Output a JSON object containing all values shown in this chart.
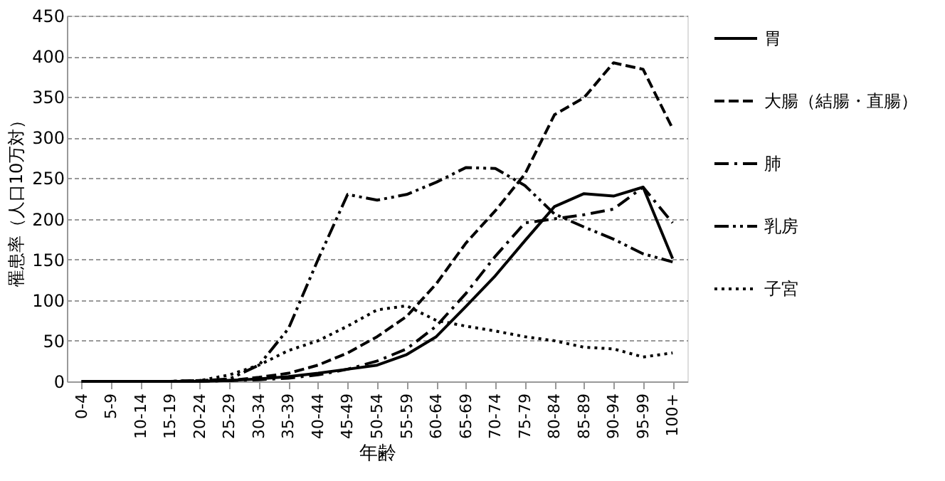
{
  "chart_data": {
    "type": "line",
    "xlabel": "年齢",
    "ylabel": "罹患率（人口10万対）",
    "categories": [
      "0-4",
      "5-9",
      "10-14",
      "15-19",
      "20-24",
      "25-29",
      "30-34",
      "35-39",
      "40-44",
      "45-49",
      "50-54",
      "55-59",
      "60-64",
      "65-69",
      "70-74",
      "75-79",
      "80-84",
      "85-89",
      "90-94",
      "95-99",
      "100+"
    ],
    "series": [
      {
        "name": "胃",
        "color": "#000000",
        "line_style": "solid",
        "values": [
          0,
          0,
          0,
          0,
          0,
          1,
          3,
          6,
          10,
          15,
          20,
          33,
          55,
          92,
          130,
          173,
          215,
          231,
          228,
          239,
          151
        ]
      },
      {
        "name": "大腸（結腸・直腸）",
        "color": "#000000",
        "line_style": "dashed",
        "values": [
          0,
          0,
          0,
          0,
          1,
          1,
          5,
          10,
          20,
          35,
          55,
          80,
          120,
          170,
          210,
          255,
          328,
          349,
          392,
          384,
          311
        ]
      },
      {
        "name": "肺",
        "color": "#000000",
        "line_style": "dashdot",
        "values": [
          0,
          0,
          0,
          0,
          0,
          1,
          2,
          4,
          8,
          15,
          25,
          40,
          68,
          108,
          154,
          195,
          200,
          205,
          212,
          239,
          195
        ]
      },
      {
        "name": "乳房",
        "color": "#000000",
        "line_style": "dashdotdot",
        "values": [
          0,
          0,
          0,
          0,
          1,
          3,
          20,
          65,
          150,
          230,
          223,
          230,
          245,
          263,
          262,
          241,
          206,
          190,
          175,
          157,
          147
        ]
      },
      {
        "name": "子宮",
        "color": "#000000",
        "line_style": "dotted",
        "values": [
          0,
          0,
          0,
          0,
          1,
          8,
          20,
          38,
          50,
          68,
          88,
          93,
          75,
          68,
          62,
          55,
          50,
          42,
          40,
          30,
          35
        ]
      }
    ],
    "ylim": [
      0,
      450
    ],
    "yticks": [
      0,
      50,
      100,
      150,
      200,
      250,
      300,
      350,
      400,
      450
    ],
    "grid": "y",
    "legend": "right",
    "marker": "none"
  }
}
